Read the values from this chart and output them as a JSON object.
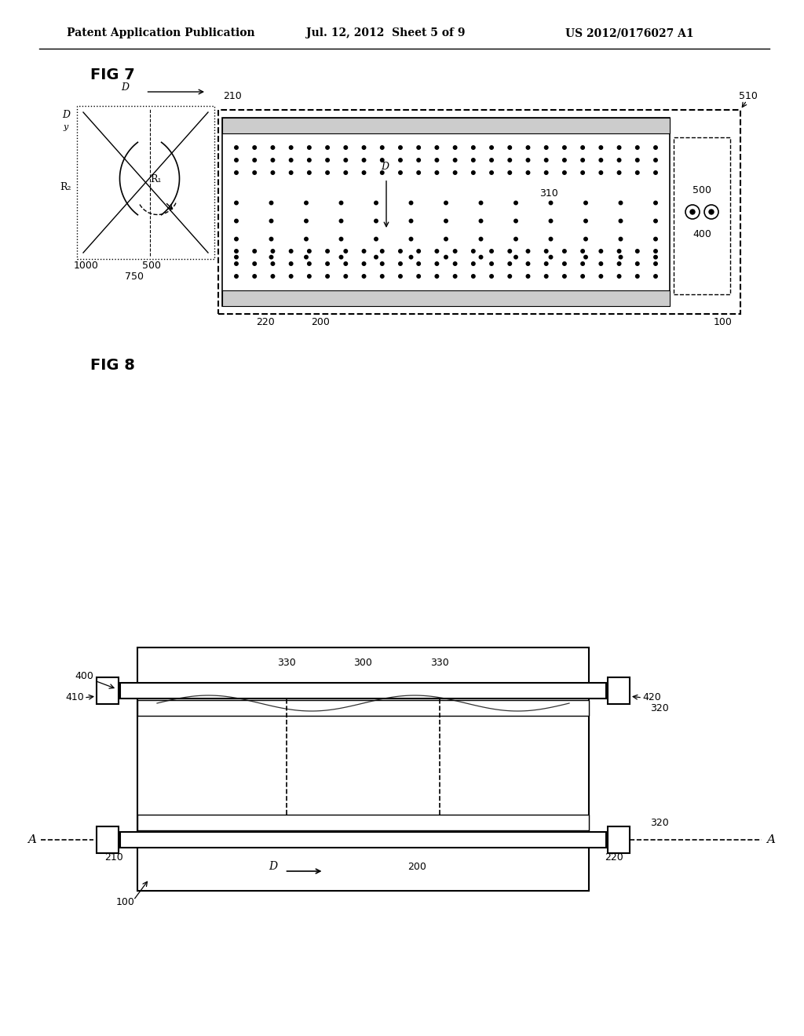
{
  "bg_color": "#ffffff",
  "header_left": "Patent Application Publication",
  "header_mid": "Jul. 12, 2012  Sheet 5 of 9",
  "header_right": "US 2012/0176027 A1",
  "fig7_label": "FIG 7",
  "fig8_label": "FIG 8"
}
